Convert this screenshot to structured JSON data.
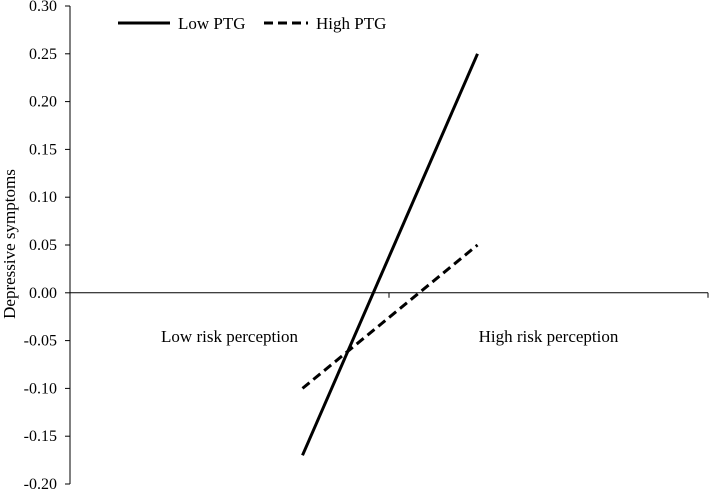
{
  "chart_data": {
    "type": "line",
    "title": "",
    "xlabel": "",
    "ylabel": "Depressive symptoms",
    "ylim": [
      -0.2,
      0.3
    ],
    "yticks": [
      "0.30",
      "0.25",
      "0.20",
      "0.15",
      "0.10",
      "0.05",
      "0.00",
      "-0.05",
      "-0.10",
      "-0.15",
      "-0.20"
    ],
    "categories": [
      "Low risk perception",
      "High risk perception"
    ],
    "legend_position": "top-left",
    "grid": false,
    "series": [
      {
        "name": "Low PTG",
        "values": [
          -0.17,
          0.25
        ],
        "style": "solid",
        "color": "#000000"
      },
      {
        "name": "High PTG",
        "values": [
          -0.1,
          0.05
        ],
        "style": "dashed",
        "color": "#000000"
      }
    ]
  }
}
